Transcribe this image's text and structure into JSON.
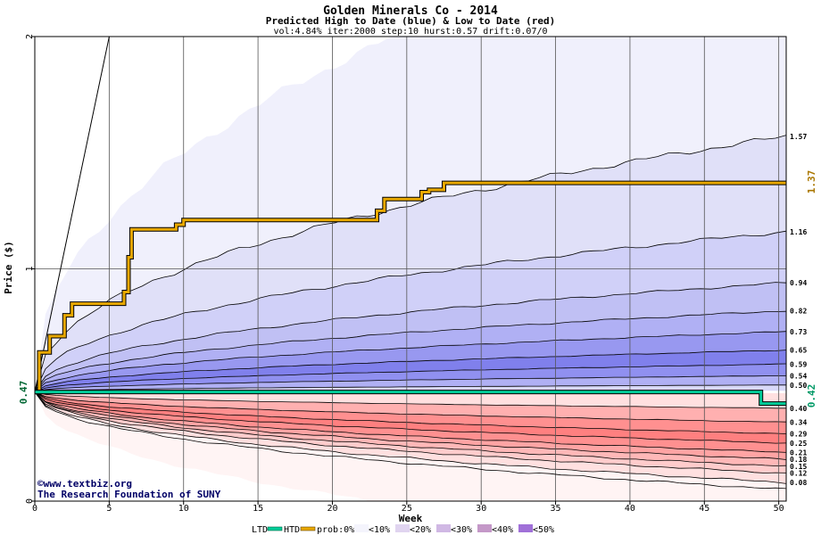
{
  "chart_data": {
    "type": "area",
    "title": "Golden Minerals Co - 2014",
    "subtitle": "Predicted High to Date (blue) &  Low to Date (red)",
    "params": "vol:4.84% iter:2000 step:10 hurst:0.57 drift:0.07/0",
    "xlabel": "Week",
    "ylabel": "Price ($)",
    "xlim": [
      0,
      50.5
    ],
    "ylim": [
      0,
      2
    ],
    "x_ticks": [
      0,
      5,
      10,
      15,
      20,
      25,
      30,
      35,
      40,
      45,
      50
    ],
    "y_ticks": [
      0,
      1,
      2
    ],
    "grid": true,
    "start_price": 0.47,
    "start_price_label": "0.47",
    "htd_label": "1.37",
    "htd_label_color": "#aa7700",
    "ltd_label": "0.42",
    "ltd_label_color": "#009966",
    "high_band_end_values": [
      1.57,
      1.16,
      0.94,
      0.82,
      0.73,
      0.65,
      0.59,
      0.54,
      0.5
    ],
    "low_band_end_values": [
      0.4,
      0.34,
      0.29,
      0.25,
      0.21,
      0.18,
      0.15,
      0.12,
      0.08
    ],
    "high_band_fills": [
      "#f0f0fc",
      "#e0e0f8",
      "#d0d0f8",
      "#c0c0f4",
      "#b0b0f4",
      "#9898f0",
      "#8080ec",
      "#9090f0",
      "#b0b0f4",
      "#d8d8f8"
    ],
    "low_band_fills": [
      "#fff4f4",
      "#ffe0e0",
      "#ffcccc",
      "#ffb8b8",
      "#ffa4a4",
      "#ff9090",
      "#ff8080",
      "#ff9090",
      "#ffb0b0",
      "#ffe0e0"
    ],
    "series": [
      {
        "name": "HTD",
        "color": "#e8a800",
        "x": [
          0,
          0.3,
          0.3,
          1,
          1,
          2,
          2,
          2.5,
          2.5,
          6,
          6,
          6.3,
          6.3,
          6.5,
          6.5,
          9.5,
          9.5,
          10,
          10,
          23,
          23,
          23.5,
          23.5,
          26,
          26,
          26.5,
          26.5,
          27.5,
          27.5,
          50.5
        ],
        "y": [
          0.47,
          0.47,
          0.64,
          0.64,
          0.71,
          0.71,
          0.8,
          0.8,
          0.85,
          0.85,
          0.9,
          0.9,
          1.05,
          1.05,
          1.17,
          1.17,
          1.19,
          1.19,
          1.21,
          1.21,
          1.25,
          1.25,
          1.3,
          1.3,
          1.33,
          1.33,
          1.34,
          1.34,
          1.37,
          1.37
        ]
      },
      {
        "name": "LTD",
        "color": "#00cc99",
        "x": [
          0,
          48.8,
          48.8,
          50.5
        ],
        "y": [
          0.47,
          0.47,
          0.42,
          0.42
        ]
      }
    ],
    "max_path": {
      "x": [
        0,
        5,
        50.5
      ],
      "y": [
        0.47,
        2.0,
        2.0
      ]
    }
  },
  "legend": {
    "ltd": "LTD",
    "htd": "HTD",
    "prob_prefix": "prob:0%",
    "items": [
      {
        "label": "<10%",
        "color": "#f4f4fc"
      },
      {
        "label": "<20%",
        "color": "#e0d4f0"
      },
      {
        "label": "<30%",
        "color": "#d0b8e4"
      },
      {
        "label": "<40%",
        "color": "#c498c8"
      },
      {
        "label": "<50%",
        "color": "#a070d8"
      }
    ]
  },
  "watermark": {
    "copyright": "©www.textbiz.org",
    "org": "The Research Foundation of SUNY"
  }
}
